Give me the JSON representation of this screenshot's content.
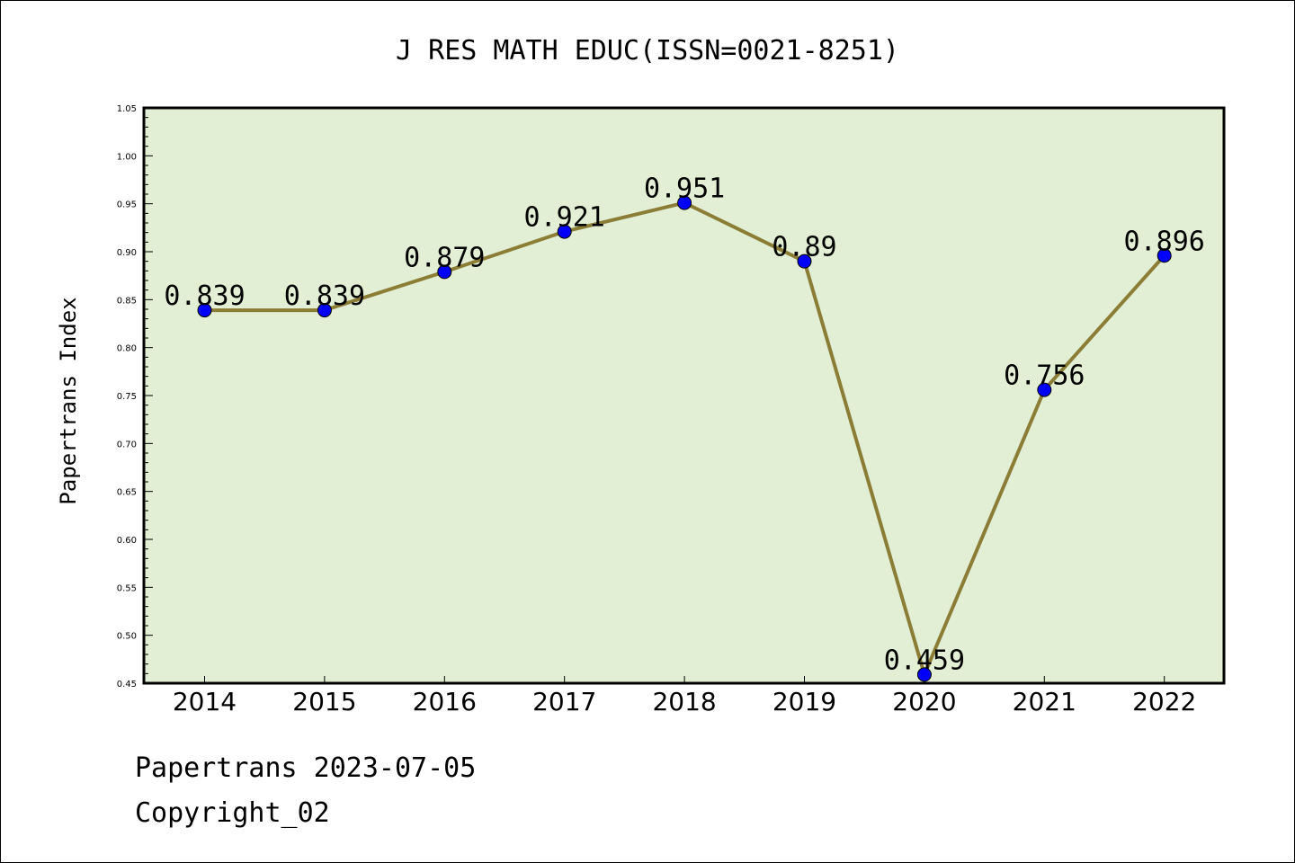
{
  "chart_data": {
    "type": "line",
    "title": "J RES MATH EDUC(ISSN=0021-8251)",
    "xlabel": "",
    "ylabel": "Papertrans Index",
    "categories": [
      "2014",
      "2015",
      "2016",
      "2017",
      "2018",
      "2019",
      "2020",
      "2021",
      "2022"
    ],
    "values": [
      0.839,
      0.839,
      0.879,
      0.921,
      0.951,
      0.89,
      0.459,
      0.756,
      0.896
    ],
    "data_labels": [
      "0.839",
      "0.839",
      "0.879",
      "0.921",
      "0.951",
      "0.89",
      "0.459",
      "0.756",
      "0.896"
    ],
    "ylim": [
      0.45,
      1.05
    ],
    "yticks": [
      "0.45",
      "0.50",
      "0.55",
      "0.60",
      "0.65",
      "0.70",
      "0.75",
      "0.80",
      "0.85",
      "0.90",
      "0.95",
      "1.00",
      "1.05"
    ],
    "grid": false,
    "colors": {
      "plot_background": "#e2efd5",
      "line": "#8b7d35",
      "marker": "#0000ff"
    }
  },
  "footer": {
    "line1": "Papertrans 2023-07-05",
    "line2": "Copyright_02"
  }
}
